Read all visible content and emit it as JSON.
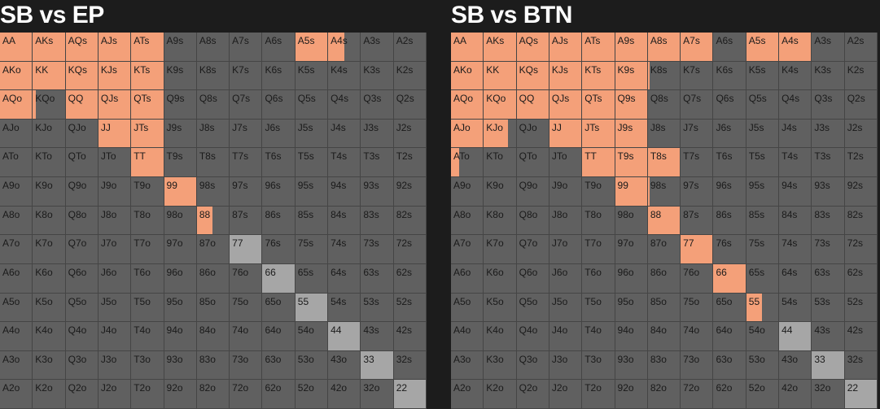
{
  "panels": [
    {
      "title": "SB vs EP",
      "colors": {
        "raise": "#f4a079",
        "call": "#a6a6a6",
        "fold": "#606060"
      },
      "cells": [
        {
          "hand": "AA",
          "raise": 1
        },
        {
          "hand": "AKs",
          "raise": 1
        },
        {
          "hand": "AQs",
          "raise": 1
        },
        {
          "hand": "AJs",
          "raise": 1
        },
        {
          "hand": "ATs",
          "raise": 1
        },
        {
          "hand": "A9s"
        },
        {
          "hand": "A8s"
        },
        {
          "hand": "A7s"
        },
        {
          "hand": "A6s"
        },
        {
          "hand": "A5s",
          "raise": 1
        },
        {
          "hand": "A4s",
          "raise": 0.5
        },
        {
          "hand": "A3s"
        },
        {
          "hand": "A2s"
        },
        {
          "hand": "AKo",
          "raise": 1
        },
        {
          "hand": "KK",
          "raise": 1
        },
        {
          "hand": "KQs",
          "raise": 1
        },
        {
          "hand": "KJs",
          "raise": 1
        },
        {
          "hand": "KTs",
          "raise": 1
        },
        {
          "hand": "K9s"
        },
        {
          "hand": "K8s"
        },
        {
          "hand": "K7s"
        },
        {
          "hand": "K6s"
        },
        {
          "hand": "K5s"
        },
        {
          "hand": "K4s"
        },
        {
          "hand": "K3s"
        },
        {
          "hand": "K2s"
        },
        {
          "hand": "AQo",
          "raise": 1
        },
        {
          "hand": "KQo",
          "raise": 0.1
        },
        {
          "hand": "QQ",
          "raise": 1
        },
        {
          "hand": "QJs",
          "raise": 1
        },
        {
          "hand": "QTs",
          "raise": 1
        },
        {
          "hand": "Q9s"
        },
        {
          "hand": "Q8s"
        },
        {
          "hand": "Q7s"
        },
        {
          "hand": "Q6s"
        },
        {
          "hand": "Q5s"
        },
        {
          "hand": "Q4s"
        },
        {
          "hand": "Q3s"
        },
        {
          "hand": "Q2s"
        },
        {
          "hand": "AJo"
        },
        {
          "hand": "KJo"
        },
        {
          "hand": "QJo"
        },
        {
          "hand": "JJ",
          "raise": 1
        },
        {
          "hand": "JTs",
          "raise": 1
        },
        {
          "hand": "J9s"
        },
        {
          "hand": "J8s"
        },
        {
          "hand": "J7s"
        },
        {
          "hand": "J6s"
        },
        {
          "hand": "J5s"
        },
        {
          "hand": "J4s"
        },
        {
          "hand": "J3s"
        },
        {
          "hand": "J2s"
        },
        {
          "hand": "ATo"
        },
        {
          "hand": "KTo"
        },
        {
          "hand": "QTo"
        },
        {
          "hand": "JTo"
        },
        {
          "hand": "TT",
          "raise": 1
        },
        {
          "hand": "T9s"
        },
        {
          "hand": "T8s"
        },
        {
          "hand": "T7s"
        },
        {
          "hand": "T6s"
        },
        {
          "hand": "T5s"
        },
        {
          "hand": "T4s"
        },
        {
          "hand": "T3s"
        },
        {
          "hand": "T2s"
        },
        {
          "hand": "A9o"
        },
        {
          "hand": "K9o"
        },
        {
          "hand": "Q9o"
        },
        {
          "hand": "J9o"
        },
        {
          "hand": "T9o"
        },
        {
          "hand": "99",
          "raise": 1
        },
        {
          "hand": "98s"
        },
        {
          "hand": "97s"
        },
        {
          "hand": "96s"
        },
        {
          "hand": "95s"
        },
        {
          "hand": "94s"
        },
        {
          "hand": "93s"
        },
        {
          "hand": "92s"
        },
        {
          "hand": "A8o"
        },
        {
          "hand": "K8o"
        },
        {
          "hand": "Q8o"
        },
        {
          "hand": "J8o"
        },
        {
          "hand": "T8o"
        },
        {
          "hand": "98o"
        },
        {
          "hand": "88",
          "raise": 0.5
        },
        {
          "hand": "87s"
        },
        {
          "hand": "86s"
        },
        {
          "hand": "85s"
        },
        {
          "hand": "84s"
        },
        {
          "hand": "83s"
        },
        {
          "hand": "82s"
        },
        {
          "hand": "A7o"
        },
        {
          "hand": "K7o"
        },
        {
          "hand": "Q7o"
        },
        {
          "hand": "J7o"
        },
        {
          "hand": "T7o"
        },
        {
          "hand": "97o"
        },
        {
          "hand": "87o"
        },
        {
          "hand": "77",
          "call": 1
        },
        {
          "hand": "76s"
        },
        {
          "hand": "75s"
        },
        {
          "hand": "74s"
        },
        {
          "hand": "73s"
        },
        {
          "hand": "72s"
        },
        {
          "hand": "A6o"
        },
        {
          "hand": "K6o"
        },
        {
          "hand": "Q6o"
        },
        {
          "hand": "J6o"
        },
        {
          "hand": "T6o"
        },
        {
          "hand": "96o"
        },
        {
          "hand": "86o"
        },
        {
          "hand": "76o"
        },
        {
          "hand": "66",
          "call": 1
        },
        {
          "hand": "65s"
        },
        {
          "hand": "64s"
        },
        {
          "hand": "63s"
        },
        {
          "hand": "62s"
        },
        {
          "hand": "A5o"
        },
        {
          "hand": "K5o"
        },
        {
          "hand": "Q5o"
        },
        {
          "hand": "J5o"
        },
        {
          "hand": "T5o"
        },
        {
          "hand": "95o"
        },
        {
          "hand": "85o"
        },
        {
          "hand": "75o"
        },
        {
          "hand": "65o"
        },
        {
          "hand": "55",
          "call": 1
        },
        {
          "hand": "54s"
        },
        {
          "hand": "53s"
        },
        {
          "hand": "52s"
        },
        {
          "hand": "A4o"
        },
        {
          "hand": "K4o"
        },
        {
          "hand": "Q4o"
        },
        {
          "hand": "J4o"
        },
        {
          "hand": "T4o"
        },
        {
          "hand": "94o"
        },
        {
          "hand": "84o"
        },
        {
          "hand": "74o"
        },
        {
          "hand": "64o"
        },
        {
          "hand": "54o"
        },
        {
          "hand": "44",
          "call": 1
        },
        {
          "hand": "43s"
        },
        {
          "hand": "42s"
        },
        {
          "hand": "A3o"
        },
        {
          "hand": "K3o"
        },
        {
          "hand": "Q3o"
        },
        {
          "hand": "J3o"
        },
        {
          "hand": "T3o"
        },
        {
          "hand": "93o"
        },
        {
          "hand": "83o"
        },
        {
          "hand": "73o"
        },
        {
          "hand": "63o"
        },
        {
          "hand": "53o"
        },
        {
          "hand": "43o"
        },
        {
          "hand": "33",
          "call": 1
        },
        {
          "hand": "32s"
        },
        {
          "hand": "A2o"
        },
        {
          "hand": "K2o"
        },
        {
          "hand": "Q2o"
        },
        {
          "hand": "J2o"
        },
        {
          "hand": "T2o"
        },
        {
          "hand": "92o"
        },
        {
          "hand": "82o"
        },
        {
          "hand": "72o"
        },
        {
          "hand": "62o"
        },
        {
          "hand": "52o"
        },
        {
          "hand": "42o"
        },
        {
          "hand": "32o"
        },
        {
          "hand": "22",
          "call": 1
        }
      ]
    },
    {
      "title": "SB vs BTN",
      "colors": {
        "raise": "#f4a079",
        "call": "#a6a6a6",
        "fold": "#606060"
      },
      "cells": [
        {
          "hand": "AA",
          "raise": 1
        },
        {
          "hand": "AKs",
          "raise": 1
        },
        {
          "hand": "AQs",
          "raise": 1
        },
        {
          "hand": "AJs",
          "raise": 1
        },
        {
          "hand": "ATs",
          "raise": 1
        },
        {
          "hand": "A9s",
          "raise": 1
        },
        {
          "hand": "A8s",
          "raise": 1
        },
        {
          "hand": "A7s",
          "raise": 1
        },
        {
          "hand": "A6s"
        },
        {
          "hand": "A5s",
          "raise": 1
        },
        {
          "hand": "A4s",
          "raise": 1
        },
        {
          "hand": "A3s"
        },
        {
          "hand": "A2s"
        },
        {
          "hand": "AKo",
          "raise": 1
        },
        {
          "hand": "KK",
          "raise": 1
        },
        {
          "hand": "KQs",
          "raise": 1
        },
        {
          "hand": "KJs",
          "raise": 1
        },
        {
          "hand": "KTs",
          "raise": 1
        },
        {
          "hand": "K9s",
          "raise": 1
        },
        {
          "hand": "K8s",
          "raise": 0.05
        },
        {
          "hand": "K7s"
        },
        {
          "hand": "K6s"
        },
        {
          "hand": "K5s"
        },
        {
          "hand": "K4s"
        },
        {
          "hand": "K3s"
        },
        {
          "hand": "K2s"
        },
        {
          "hand": "AQo",
          "raise": 1
        },
        {
          "hand": "KQo",
          "raise": 1
        },
        {
          "hand": "QQ",
          "raise": 1
        },
        {
          "hand": "QJs",
          "raise": 1
        },
        {
          "hand": "QTs",
          "raise": 1
        },
        {
          "hand": "Q9s",
          "raise": 1
        },
        {
          "hand": "Q8s"
        },
        {
          "hand": "Q7s"
        },
        {
          "hand": "Q6s"
        },
        {
          "hand": "Q5s"
        },
        {
          "hand": "Q4s"
        },
        {
          "hand": "Q3s"
        },
        {
          "hand": "Q2s"
        },
        {
          "hand": "AJo",
          "raise": 1
        },
        {
          "hand": "KJo",
          "raise": 0.75
        },
        {
          "hand": "QJo"
        },
        {
          "hand": "JJ",
          "raise": 1
        },
        {
          "hand": "JTs",
          "raise": 1
        },
        {
          "hand": "J9s",
          "raise": 1
        },
        {
          "hand": "J8s"
        },
        {
          "hand": "J7s"
        },
        {
          "hand": "J6s"
        },
        {
          "hand": "J5s"
        },
        {
          "hand": "J4s"
        },
        {
          "hand": "J3s"
        },
        {
          "hand": "J2s"
        },
        {
          "hand": "ATo",
          "raise": 0.25
        },
        {
          "hand": "KTo"
        },
        {
          "hand": "QTo"
        },
        {
          "hand": "JTo"
        },
        {
          "hand": "TT",
          "raise": 1
        },
        {
          "hand": "T9s",
          "raise": 1
        },
        {
          "hand": "T8s",
          "raise": 1
        },
        {
          "hand": "T7s"
        },
        {
          "hand": "T6s"
        },
        {
          "hand": "T5s"
        },
        {
          "hand": "T4s"
        },
        {
          "hand": "T3s"
        },
        {
          "hand": "T2s"
        },
        {
          "hand": "A9o"
        },
        {
          "hand": "K9o"
        },
        {
          "hand": "Q9o"
        },
        {
          "hand": "J9o"
        },
        {
          "hand": "T9o"
        },
        {
          "hand": "99",
          "raise": 1
        },
        {
          "hand": "98s",
          "raise": 0.05
        },
        {
          "hand": "97s"
        },
        {
          "hand": "96s"
        },
        {
          "hand": "95s"
        },
        {
          "hand": "94s"
        },
        {
          "hand": "93s"
        },
        {
          "hand": "92s"
        },
        {
          "hand": "A8o"
        },
        {
          "hand": "K8o"
        },
        {
          "hand": "Q8o"
        },
        {
          "hand": "J8o"
        },
        {
          "hand": "T8o"
        },
        {
          "hand": "98o"
        },
        {
          "hand": "88",
          "raise": 1
        },
        {
          "hand": "87s"
        },
        {
          "hand": "86s"
        },
        {
          "hand": "85s"
        },
        {
          "hand": "84s"
        },
        {
          "hand": "83s"
        },
        {
          "hand": "82s"
        },
        {
          "hand": "A7o"
        },
        {
          "hand": "K7o"
        },
        {
          "hand": "Q7o"
        },
        {
          "hand": "J7o"
        },
        {
          "hand": "T7o"
        },
        {
          "hand": "97o"
        },
        {
          "hand": "87o"
        },
        {
          "hand": "77",
          "raise": 1
        },
        {
          "hand": "76s"
        },
        {
          "hand": "75s"
        },
        {
          "hand": "74s"
        },
        {
          "hand": "73s"
        },
        {
          "hand": "72s"
        },
        {
          "hand": "A6o"
        },
        {
          "hand": "K6o"
        },
        {
          "hand": "Q6o"
        },
        {
          "hand": "J6o"
        },
        {
          "hand": "T6o"
        },
        {
          "hand": "96o"
        },
        {
          "hand": "86o"
        },
        {
          "hand": "76o"
        },
        {
          "hand": "66",
          "raise": 1
        },
        {
          "hand": "65s"
        },
        {
          "hand": "64s"
        },
        {
          "hand": "63s"
        },
        {
          "hand": "62s"
        },
        {
          "hand": "A5o"
        },
        {
          "hand": "K5o"
        },
        {
          "hand": "Q5o"
        },
        {
          "hand": "J5o"
        },
        {
          "hand": "T5o"
        },
        {
          "hand": "95o"
        },
        {
          "hand": "85o"
        },
        {
          "hand": "75o"
        },
        {
          "hand": "65o"
        },
        {
          "hand": "55",
          "raise": 0.5
        },
        {
          "hand": "54s"
        },
        {
          "hand": "53s"
        },
        {
          "hand": "52s"
        },
        {
          "hand": "A4o"
        },
        {
          "hand": "K4o"
        },
        {
          "hand": "Q4o"
        },
        {
          "hand": "J4o"
        },
        {
          "hand": "T4o"
        },
        {
          "hand": "94o"
        },
        {
          "hand": "84o"
        },
        {
          "hand": "74o"
        },
        {
          "hand": "64o"
        },
        {
          "hand": "54o"
        },
        {
          "hand": "44",
          "call": 1
        },
        {
          "hand": "43s"
        },
        {
          "hand": "42s"
        },
        {
          "hand": "A3o"
        },
        {
          "hand": "K3o"
        },
        {
          "hand": "Q3o"
        },
        {
          "hand": "J3o"
        },
        {
          "hand": "T3o"
        },
        {
          "hand": "93o"
        },
        {
          "hand": "83o"
        },
        {
          "hand": "73o"
        },
        {
          "hand": "63o"
        },
        {
          "hand": "53o"
        },
        {
          "hand": "43o"
        },
        {
          "hand": "33",
          "call": 1
        },
        {
          "hand": "32s"
        },
        {
          "hand": "A2o"
        },
        {
          "hand": "K2o"
        },
        {
          "hand": "Q2o"
        },
        {
          "hand": "J2o"
        },
        {
          "hand": "T2o"
        },
        {
          "hand": "92o"
        },
        {
          "hand": "82o"
        },
        {
          "hand": "72o"
        },
        {
          "hand": "62o"
        },
        {
          "hand": "52o"
        },
        {
          "hand": "42o"
        },
        {
          "hand": "32o"
        },
        {
          "hand": "22",
          "call": 1
        }
      ]
    }
  ]
}
